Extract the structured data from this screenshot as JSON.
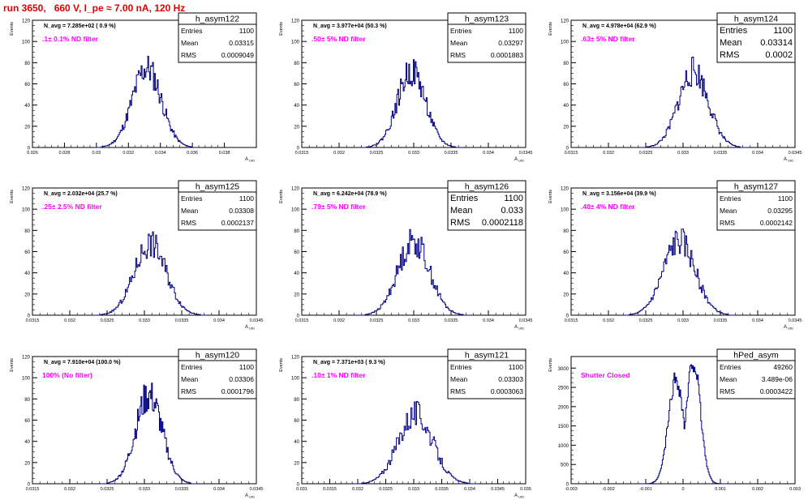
{
  "run_title": "run 3650,   660 V, I_pe ≈ 7.00 nA, 120 Hz",
  "style": {
    "hist_color": "#000080",
    "label_color": "#ff00ff",
    "title_color": "#e00000"
  },
  "chart_data": [
    {
      "type": "histogram",
      "name": "h_asym122",
      "navg": "N_avg = 7.285e+02 ( 0.9 %)",
      "label": ".1± 0.1% ND filter",
      "stats": {
        "entries": "1100",
        "mean": "0.03315",
        "rms": "0.0009049"
      },
      "stats_large": false,
      "xlim": [
        0.026,
        0.04
      ],
      "ylim": [
        0,
        120
      ],
      "xticks": [
        "0.026",
        "0.028",
        "0.03",
        "0.032",
        "0.034",
        "0.036",
        "0.038"
      ],
      "yticks": [
        "0",
        "20",
        "40",
        "60",
        "80",
        "100",
        "120"
      ],
      "xlabel": "A_UID",
      "ylabel": "Events",
      "mu": 0.03315,
      "sigma": 0.0009049,
      "peak": 75,
      "seed": 11
    },
    {
      "type": "histogram",
      "name": "h_asym123",
      "navg": "N_avg = 3.977e+04 (50.3 %)",
      "label": ".50± 5% ND filter",
      "stats": {
        "entries": "1100",
        "mean": "0.03297",
        "rms": "0.0001883"
      },
      "stats_large": false,
      "xlim": [
        0.0315,
        0.0345
      ],
      "ylim": [
        0,
        120
      ],
      "xticks": [
        "0.0315",
        "0.032",
        "0.0325",
        "0.033",
        "0.0335",
        "0.034",
        "0.0345"
      ],
      "yticks": [
        "0",
        "20",
        "40",
        "60",
        "80",
        "100",
        "120"
      ],
      "xlabel": "A_UID",
      "ylabel": "Events",
      "mu": 0.03297,
      "sigma": 0.0001883,
      "peak": 72,
      "seed": 22
    },
    {
      "type": "histogram",
      "name": "h_asym124",
      "navg": "N_avg = 4.978e+04 (62.9 %)",
      "label": ".63± 5% ND filter",
      "stats": {
        "entries": "1100",
        "mean": "0.03314",
        "rms": "0.0002"
      },
      "stats_large": true,
      "xlim": [
        0.0315,
        0.0345
      ],
      "ylim": [
        0,
        120
      ],
      "xticks": [
        "0.0315",
        "0.032",
        "0.0325",
        "0.033",
        "0.0335",
        "0.034",
        "0.0345"
      ],
      "yticks": [
        "0",
        "20",
        "40",
        "60",
        "80",
        "100",
        "120"
      ],
      "xlabel": "A_UID",
      "ylabel": "Events",
      "mu": 0.03314,
      "sigma": 0.0002,
      "peak": 72,
      "seed": 33
    },
    {
      "type": "histogram",
      "name": "h_asym125",
      "navg": "N_avg = 2.032e+04 (25.7 %)",
      "label": ".25± 2.5% ND filter",
      "stats": {
        "entries": "1100",
        "mean": "0.03308",
        "rms": "0.0002137"
      },
      "stats_large": false,
      "xlim": [
        0.0315,
        0.0345
      ],
      "ylim": [
        0,
        120
      ],
      "xticks": [
        "0.0315",
        "0.032",
        "0.0325",
        "0.033",
        "0.0335",
        "0.034",
        "0.0345"
      ],
      "yticks": [
        "0",
        "20",
        "40",
        "60",
        "80",
        "100",
        "120"
      ],
      "xlabel": "A_UID",
      "ylabel": "Events",
      "mu": 0.03308,
      "sigma": 0.0002137,
      "peak": 68,
      "seed": 44
    },
    {
      "type": "histogram",
      "name": "h_asym126",
      "navg": "N_avg = 6.242e+04 (78.9 %)",
      "label": ".79± 5% ND filter",
      "stats": {
        "entries": "1100",
        "mean": "0.033",
        "rms": "0.0002118"
      },
      "stats_large": true,
      "xlim": [
        0.0315,
        0.0345
      ],
      "ylim": [
        0,
        120
      ],
      "xticks": [
        "0.0315",
        "0.032",
        "0.0325",
        "0.033",
        "0.0335",
        "0.034",
        "0.0345"
      ],
      "yticks": [
        "0",
        "20",
        "40",
        "60",
        "80",
        "100",
        "120"
      ],
      "xlabel": "A_UID",
      "ylabel": "Events",
      "mu": 0.033,
      "sigma": 0.0002118,
      "peak": 70,
      "seed": 55
    },
    {
      "type": "histogram",
      "name": "h_asym127",
      "navg": "N_avg = 3.156e+04 (39.9 %)",
      "label": ".40± 4% ND filter",
      "stats": {
        "entries": "1100",
        "mean": "0.03295",
        "rms": "0.0002142"
      },
      "stats_large": false,
      "xlim": [
        0.0315,
        0.0345
      ],
      "ylim": [
        0,
        120
      ],
      "xticks": [
        "0.0315",
        "0.032",
        "0.0325",
        "0.033",
        "0.0335",
        "0.034",
        "0.0345"
      ],
      "yticks": [
        "0",
        "20",
        "40",
        "60",
        "80",
        "100",
        "120"
      ],
      "xlabel": "A_UID",
      "ylabel": "Events",
      "mu": 0.03295,
      "sigma": 0.0002142,
      "peak": 70,
      "seed": 66
    },
    {
      "type": "histogram",
      "name": "h_asym120",
      "navg": "N_avg = 7.910e+04 (100.0 %)",
      "label": "100% (No filter)",
      "stats": {
        "entries": "1100",
        "mean": "0.03306",
        "rms": "0.0001796"
      },
      "stats_large": false,
      "xlim": [
        0.0315,
        0.0345
      ],
      "ylim": [
        0,
        120
      ],
      "xticks": [
        "0.0315",
        "0.032",
        "0.0325",
        "0.033",
        "0.0335",
        "0.034",
        "0.0345"
      ],
      "yticks": [
        "0",
        "20",
        "40",
        "60",
        "80",
        "100",
        "120"
      ],
      "xlabel": "A_UID",
      "ylabel": "Events",
      "mu": 0.03306,
      "sigma": 0.0001796,
      "peak": 83,
      "seed": 77
    },
    {
      "type": "histogram",
      "name": "h_asym121",
      "navg": "N_avg = 7.371e+03 ( 9.3 %)",
      "label": ".10± 1% ND filter",
      "stats": {
        "entries": "1100",
        "mean": "0.03303",
        "rms": "0.0003063"
      },
      "stats_large": false,
      "xlim": [
        0.031,
        0.035
      ],
      "ylim": [
        0,
        120
      ],
      "xticks": [
        "0.031",
        "0.0315",
        "0.032",
        "0.0325",
        "0.033",
        "0.0335",
        "0.034",
        "0.0345",
        "0.035"
      ],
      "yticks": [
        "0",
        "20",
        "40",
        "60",
        "80",
        "100",
        "120"
      ],
      "xlabel": "A_UID",
      "ylabel": "Events",
      "mu": 0.03303,
      "sigma": 0.0003063,
      "peak": 66,
      "seed": 88
    },
    {
      "type": "histogram",
      "name": "hPed_asym",
      "navg": "",
      "label": "Shutter Closed",
      "stats": {
        "entries": "49260",
        "mean": "3.489e-06",
        "rms": "0.0003422"
      },
      "stats_large": false,
      "xlim": [
        -0.003,
        0.003
      ],
      "ylim": [
        0,
        3300
      ],
      "xticks": [
        "-0.003",
        "-0.002",
        "-0.001",
        "0",
        "0.001",
        "0.002",
        "0.003"
      ],
      "yticks": [
        "0",
        "500",
        "1000",
        "1500",
        "2000",
        "2500",
        "3000"
      ],
      "xlabel": "",
      "ylabel": "Events",
      "mu": 3.5e-06,
      "sigma": 0.0003422,
      "peak": 3200,
      "seed": 99,
      "bimodal": true
    }
  ]
}
